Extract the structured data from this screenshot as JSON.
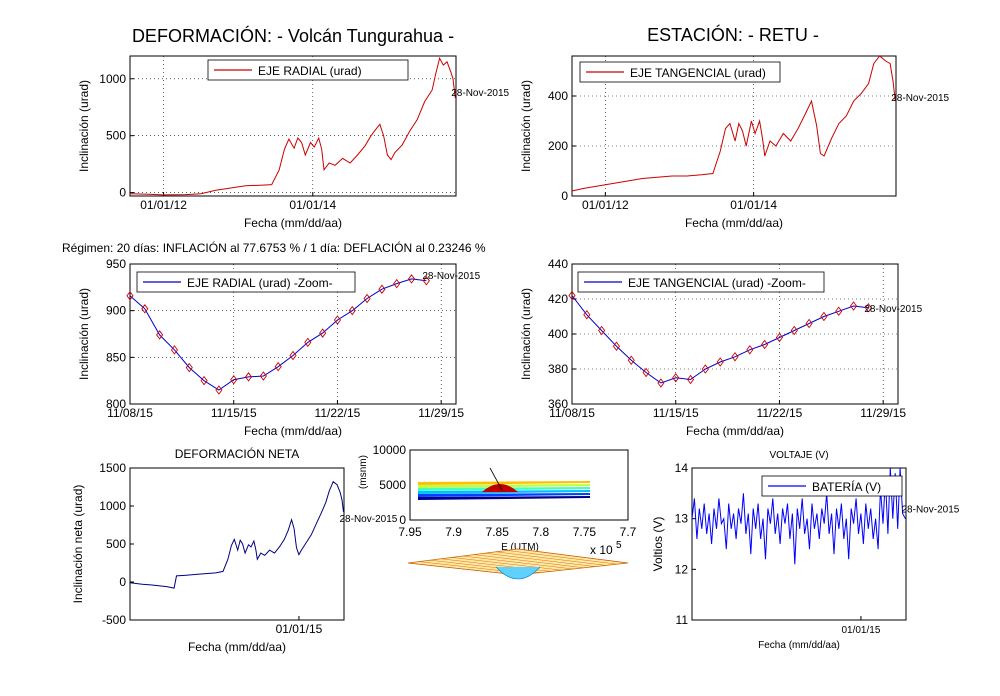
{
  "header": {
    "left_title": "DEFORMACIÓN: - Volcán Tungurahua -",
    "right_title": "ESTACIÓN: - RETU -",
    "regimen": "Régimen: 20 días: INFLACIÓN al 77.6753 % / 1 día: DEFLACIÓN al 0.23246 %"
  },
  "chart_data": [
    {
      "id": "radial",
      "type": "line",
      "legend": "EJE RADIAL (urad)",
      "xlabel": "Fecha (mm/dd/aa)",
      "ylabel": "Inclinación (urad)",
      "end_label": "28-Nov-2015",
      "xlim": [
        2011.55,
        2015.92
      ],
      "ylim": [
        -30,
        1200
      ],
      "yticks": [
        0,
        500,
        1000
      ],
      "xticks": [
        {
          "v": 2012.0,
          "label": "01/01/12"
        },
        {
          "v": 2014.0,
          "label": "01/01/14"
        }
      ],
      "color": "#cc0000",
      "points": [
        [
          2011.55,
          -10
        ],
        [
          2011.8,
          -15
        ],
        [
          2012.0,
          -20
        ],
        [
          2012.3,
          -18
        ],
        [
          2012.5,
          -10
        ],
        [
          2012.7,
          20
        ],
        [
          2012.9,
          40
        ],
        [
          2013.1,
          60
        ],
        [
          2013.3,
          65
        ],
        [
          2013.45,
          70
        ],
        [
          2013.55,
          200
        ],
        [
          2013.62,
          380
        ],
        [
          2013.68,
          470
        ],
        [
          2013.75,
          390
        ],
        [
          2013.8,
          480
        ],
        [
          2013.85,
          440
        ],
        [
          2013.9,
          330
        ],
        [
          2013.97,
          440
        ],
        [
          2014.02,
          400
        ],
        [
          2014.08,
          480
        ],
        [
          2014.12,
          380
        ],
        [
          2014.15,
          200
        ],
        [
          2014.22,
          260
        ],
        [
          2014.3,
          240
        ],
        [
          2014.4,
          300
        ],
        [
          2014.5,
          260
        ],
        [
          2014.6,
          330
        ],
        [
          2014.7,
          410
        ],
        [
          2014.78,
          500
        ],
        [
          2014.85,
          560
        ],
        [
          2014.9,
          600
        ],
        [
          2014.95,
          500
        ],
        [
          2015.0,
          330
        ],
        [
          2015.05,
          290
        ],
        [
          2015.1,
          350
        ],
        [
          2015.2,
          420
        ],
        [
          2015.3,
          540
        ],
        [
          2015.4,
          640
        ],
        [
          2015.5,
          800
        ],
        [
          2015.6,
          900
        ],
        [
          2015.65,
          1050
        ],
        [
          2015.7,
          1180
        ],
        [
          2015.75,
          1120
        ],
        [
          2015.8,
          1150
        ],
        [
          2015.85,
          1060
        ],
        [
          2015.88,
          1000
        ],
        [
          2015.91,
          830
        ]
      ]
    },
    {
      "id": "tangencial",
      "type": "line",
      "legend": "EJE TANGENCIAL (urad)",
      "xlabel": "Fecha (mm/dd/aa)",
      "ylabel": "Inclinación (urad)",
      "end_label": "28-Nov-2015",
      "xlim": [
        2011.55,
        2015.92
      ],
      "ylim": [
        0,
        560
      ],
      "yticks": [
        0,
        200,
        400
      ],
      "xticks": [
        {
          "v": 2012.0,
          "label": "01/01/12"
        },
        {
          "v": 2014.0,
          "label": "01/01/14"
        }
      ],
      "color": "#cc0000",
      "points": [
        [
          2011.55,
          20
        ],
        [
          2011.7,
          30
        ],
        [
          2011.9,
          40
        ],
        [
          2012.1,
          50
        ],
        [
          2012.3,
          60
        ],
        [
          2012.5,
          70
        ],
        [
          2012.7,
          75
        ],
        [
          2012.9,
          80
        ],
        [
          2013.1,
          80
        ],
        [
          2013.3,
          85
        ],
        [
          2013.45,
          90
        ],
        [
          2013.55,
          180
        ],
        [
          2013.62,
          270
        ],
        [
          2013.68,
          290
        ],
        [
          2013.75,
          220
        ],
        [
          2013.8,
          290
        ],
        [
          2013.85,
          260
        ],
        [
          2013.9,
          200
        ],
        [
          2013.97,
          300
        ],
        [
          2014.02,
          250
        ],
        [
          2014.08,
          300
        ],
        [
          2014.12,
          230
        ],
        [
          2014.15,
          160
        ],
        [
          2014.22,
          220
        ],
        [
          2014.3,
          200
        ],
        [
          2014.4,
          250
        ],
        [
          2014.5,
          220
        ],
        [
          2014.6,
          270
        ],
        [
          2014.7,
          330
        ],
        [
          2014.78,
          380
        ],
        [
          2014.85,
          280
        ],
        [
          2014.9,
          170
        ],
        [
          2014.95,
          160
        ],
        [
          2015.05,
          230
        ],
        [
          2015.15,
          290
        ],
        [
          2015.25,
          320
        ],
        [
          2015.35,
          380
        ],
        [
          2015.45,
          410
        ],
        [
          2015.55,
          450
        ],
        [
          2015.62,
          530
        ],
        [
          2015.7,
          560
        ],
        [
          2015.78,
          540
        ],
        [
          2015.84,
          530
        ],
        [
          2015.88,
          460
        ],
        [
          2015.91,
          380
        ]
      ]
    },
    {
      "id": "radial_zoom",
      "type": "line",
      "legend": "EJE RADIAL (urad) -Zoom-",
      "xlabel": "Fecha (mm/dd/aa)",
      "ylabel": "Inclinación (urad)",
      "end_label": "28-Nov-2015",
      "xlim": [
        0,
        22
      ],
      "ylim": [
        800,
        950
      ],
      "yticks": [
        800,
        850,
        900,
        950
      ],
      "xticks": [
        {
          "v": 0,
          "label": "11/08/15"
        },
        {
          "v": 7,
          "label": "11/15/15"
        },
        {
          "v": 14,
          "label": "11/22/15"
        },
        {
          "v": 21,
          "label": "11/29/15"
        }
      ],
      "color": "#0000cc",
      "marker_color": "#cc0000",
      "values": [
        916,
        902,
        874,
        858,
        839,
        825,
        815,
        826,
        829,
        830,
        840,
        852,
        866,
        876,
        890,
        900,
        913,
        923,
        929,
        934,
        932
      ]
    },
    {
      "id": "tangencial_zoom",
      "type": "line",
      "legend": "EJE TANGENCIAL (urad) -Zoom-",
      "xlabel": "Fecha (mm/dd/aa)",
      "ylabel": "Inclinación (urad)",
      "end_label": "28-Nov-2015",
      "xlim": [
        0,
        22
      ],
      "ylim": [
        360,
        440
      ],
      "yticks": [
        360,
        380,
        400,
        420,
        440
      ],
      "xticks": [
        {
          "v": 0,
          "label": "11/08/15"
        },
        {
          "v": 7,
          "label": "11/15/15"
        },
        {
          "v": 14,
          "label": "11/22/15"
        },
        {
          "v": 21,
          "label": "11/29/15"
        }
      ],
      "color": "#0000cc",
      "marker_color": "#cc0000",
      "values": [
        422,
        411,
        402,
        393,
        385,
        378,
        372,
        375,
        374,
        380,
        384,
        387,
        391,
        394,
        398,
        402,
        406,
        410,
        413,
        416,
        415
      ]
    },
    {
      "id": "neta",
      "type": "line",
      "title": "DEFORMACIÓN NETA",
      "xlabel": "Fecha (mm/dd/aa)",
      "ylabel": "Inclinación neta (urad)",
      "end_label": "28-Nov-2015",
      "xlim": [
        2011.55,
        2015.92
      ],
      "ylim": [
        -500,
        1500
      ],
      "yticks": [
        -500,
        0,
        500,
        1000,
        1500
      ],
      "xticks": [
        {
          "v": 2015.0,
          "label": "01/01/15"
        }
      ],
      "color": "#000080",
      "points": [
        [
          2011.55,
          -10
        ],
        [
          2011.8,
          -30
        ],
        [
          2012.0,
          -40
        ],
        [
          2012.3,
          -60
        ],
        [
          2012.45,
          -80
        ],
        [
          2012.5,
          80
        ],
        [
          2012.7,
          90
        ],
        [
          2012.9,
          100
        ],
        [
          2013.1,
          110
        ],
        [
          2013.3,
          120
        ],
        [
          2013.45,
          140
        ],
        [
          2013.55,
          300
        ],
        [
          2013.62,
          480
        ],
        [
          2013.68,
          560
        ],
        [
          2013.75,
          420
        ],
        [
          2013.8,
          550
        ],
        [
          2013.85,
          500
        ],
        [
          2013.9,
          380
        ],
        [
          2013.97,
          490
        ],
        [
          2014.02,
          460
        ],
        [
          2014.08,
          540
        ],
        [
          2014.12,
          420
        ],
        [
          2014.15,
          300
        ],
        [
          2014.22,
          380
        ],
        [
          2014.3,
          350
        ],
        [
          2014.4,
          420
        ],
        [
          2014.5,
          380
        ],
        [
          2014.6,
          460
        ],
        [
          2014.7,
          560
        ],
        [
          2014.78,
          680
        ],
        [
          2014.85,
          820
        ],
        [
          2014.9,
          700
        ],
        [
          2014.95,
          450
        ],
        [
          2015.0,
          360
        ],
        [
          2015.05,
          420
        ],
        [
          2015.15,
          520
        ],
        [
          2015.25,
          620
        ],
        [
          2015.35,
          760
        ],
        [
          2015.45,
          900
        ],
        [
          2015.55,
          1050
        ],
        [
          2015.62,
          1200
        ],
        [
          2015.7,
          1320
        ],
        [
          2015.78,
          1280
        ],
        [
          2015.84,
          1180
        ],
        [
          2015.88,
          1080
        ],
        [
          2015.91,
          920
        ]
      ]
    },
    {
      "id": "voltaje",
      "type": "line",
      "title": "VOLTAJE (V)",
      "legend": "BATERÍA (V)",
      "xlabel": "Fecha (mm/dd/aa)",
      "ylabel": "Voltios (V)",
      "end_label": "28-Nov-2015",
      "xlim": [
        2011.55,
        2015.92
      ],
      "ylim": [
        11,
        14
      ],
      "yticks": [
        11,
        12,
        13,
        14
      ],
      "xticks": [
        {
          "v": 2015.0,
          "label": "01/01/15"
        }
      ],
      "color": "#0000ff",
      "points": [
        [
          2011.55,
          13.0
        ],
        [
          2011.6,
          13.4
        ],
        [
          2011.65,
          12.6
        ],
        [
          2011.7,
          13.2
        ],
        [
          2011.75,
          12.8
        ],
        [
          2011.8,
          13.3
        ],
        [
          2011.85,
          12.7
        ],
        [
          2011.9,
          13.1
        ],
        [
          2011.95,
          12.5
        ],
        [
          2012.0,
          13.2
        ],
        [
          2012.05,
          12.8
        ],
        [
          2012.1,
          13.4
        ],
        [
          2012.15,
          12.9
        ],
        [
          2012.2,
          13.0
        ],
        [
          2012.25,
          12.4
        ],
        [
          2012.3,
          13.3
        ],
        [
          2012.35,
          12.8
        ],
        [
          2012.4,
          13.1
        ],
        [
          2012.45,
          12.6
        ],
        [
          2012.5,
          13.2
        ],
        [
          2012.55,
          12.9
        ],
        [
          2012.6,
          13.5
        ],
        [
          2012.65,
          12.7
        ],
        [
          2012.7,
          13.1
        ],
        [
          2012.75,
          12.3
        ],
        [
          2012.8,
          13.2
        ],
        [
          2012.85,
          12.8
        ],
        [
          2012.9,
          13.3
        ],
        [
          2012.95,
          12.6
        ],
        [
          2013.0,
          13.0
        ],
        [
          2013.05,
          12.2
        ],
        [
          2013.1,
          13.2
        ],
        [
          2013.15,
          12.9
        ],
        [
          2013.2,
          13.4
        ],
        [
          2013.25,
          12.7
        ],
        [
          2013.3,
          13.1
        ],
        [
          2013.35,
          12.5
        ],
        [
          2013.4,
          13.2
        ],
        [
          2013.45,
          12.9
        ],
        [
          2013.5,
          13.3
        ],
        [
          2013.55,
          12.6
        ],
        [
          2013.6,
          13.1
        ],
        [
          2013.65,
          12.1
        ],
        [
          2013.7,
          13.2
        ],
        [
          2013.75,
          12.8
        ],
        [
          2013.8,
          13.4
        ],
        [
          2013.85,
          12.7
        ],
        [
          2013.9,
          13.0
        ],
        [
          2013.95,
          12.4
        ],
        [
          2014.0,
          13.3
        ],
        [
          2014.05,
          12.8
        ],
        [
          2014.1,
          13.1
        ],
        [
          2014.15,
          12.6
        ],
        [
          2014.2,
          13.2
        ],
        [
          2014.25,
          12.9
        ],
        [
          2014.3,
          13.5
        ],
        [
          2014.35,
          12.7
        ],
        [
          2014.4,
          13.1
        ],
        [
          2014.45,
          12.3
        ],
        [
          2014.5,
          13.2
        ],
        [
          2014.55,
          12.8
        ],
        [
          2014.6,
          13.3
        ],
        [
          2014.65,
          12.6
        ],
        [
          2014.7,
          13.0
        ],
        [
          2014.75,
          12.2
        ],
        [
          2014.8,
          13.2
        ],
        [
          2014.85,
          12.9
        ],
        [
          2014.9,
          13.4
        ],
        [
          2014.95,
          12.7
        ],
        [
          2015.0,
          13.1
        ],
        [
          2015.05,
          12.5
        ],
        [
          2015.1,
          13.3
        ],
        [
          2015.15,
          12.8
        ],
        [
          2015.2,
          13.2
        ],
        [
          2015.25,
          12.6
        ],
        [
          2015.3,
          13.0
        ],
        [
          2015.35,
          12.4
        ],
        [
          2015.4,
          13.6
        ],
        [
          2015.45,
          12.9
        ],
        [
          2015.5,
          13.8
        ],
        [
          2015.55,
          12.7
        ],
        [
          2015.6,
          14.0
        ],
        [
          2015.65,
          13.0
        ],
        [
          2015.7,
          13.9
        ],
        [
          2015.75,
          12.8
        ],
        [
          2015.8,
          14.0
        ],
        [
          2015.85,
          13.1
        ],
        [
          2015.91,
          13.0
        ]
      ]
    },
    {
      "id": "topo",
      "type": "surface",
      "xlabel": "E (UTM)",
      "ylabel": "(msnm)",
      "xticks": [
        "7.95",
        "7.9",
        "7.85",
        "7.8",
        "7.75",
        "7.7"
      ],
      "yticks": [
        "0",
        "5000",
        "10000"
      ],
      "exponent": "x 10",
      "exponent_power": "5"
    }
  ]
}
